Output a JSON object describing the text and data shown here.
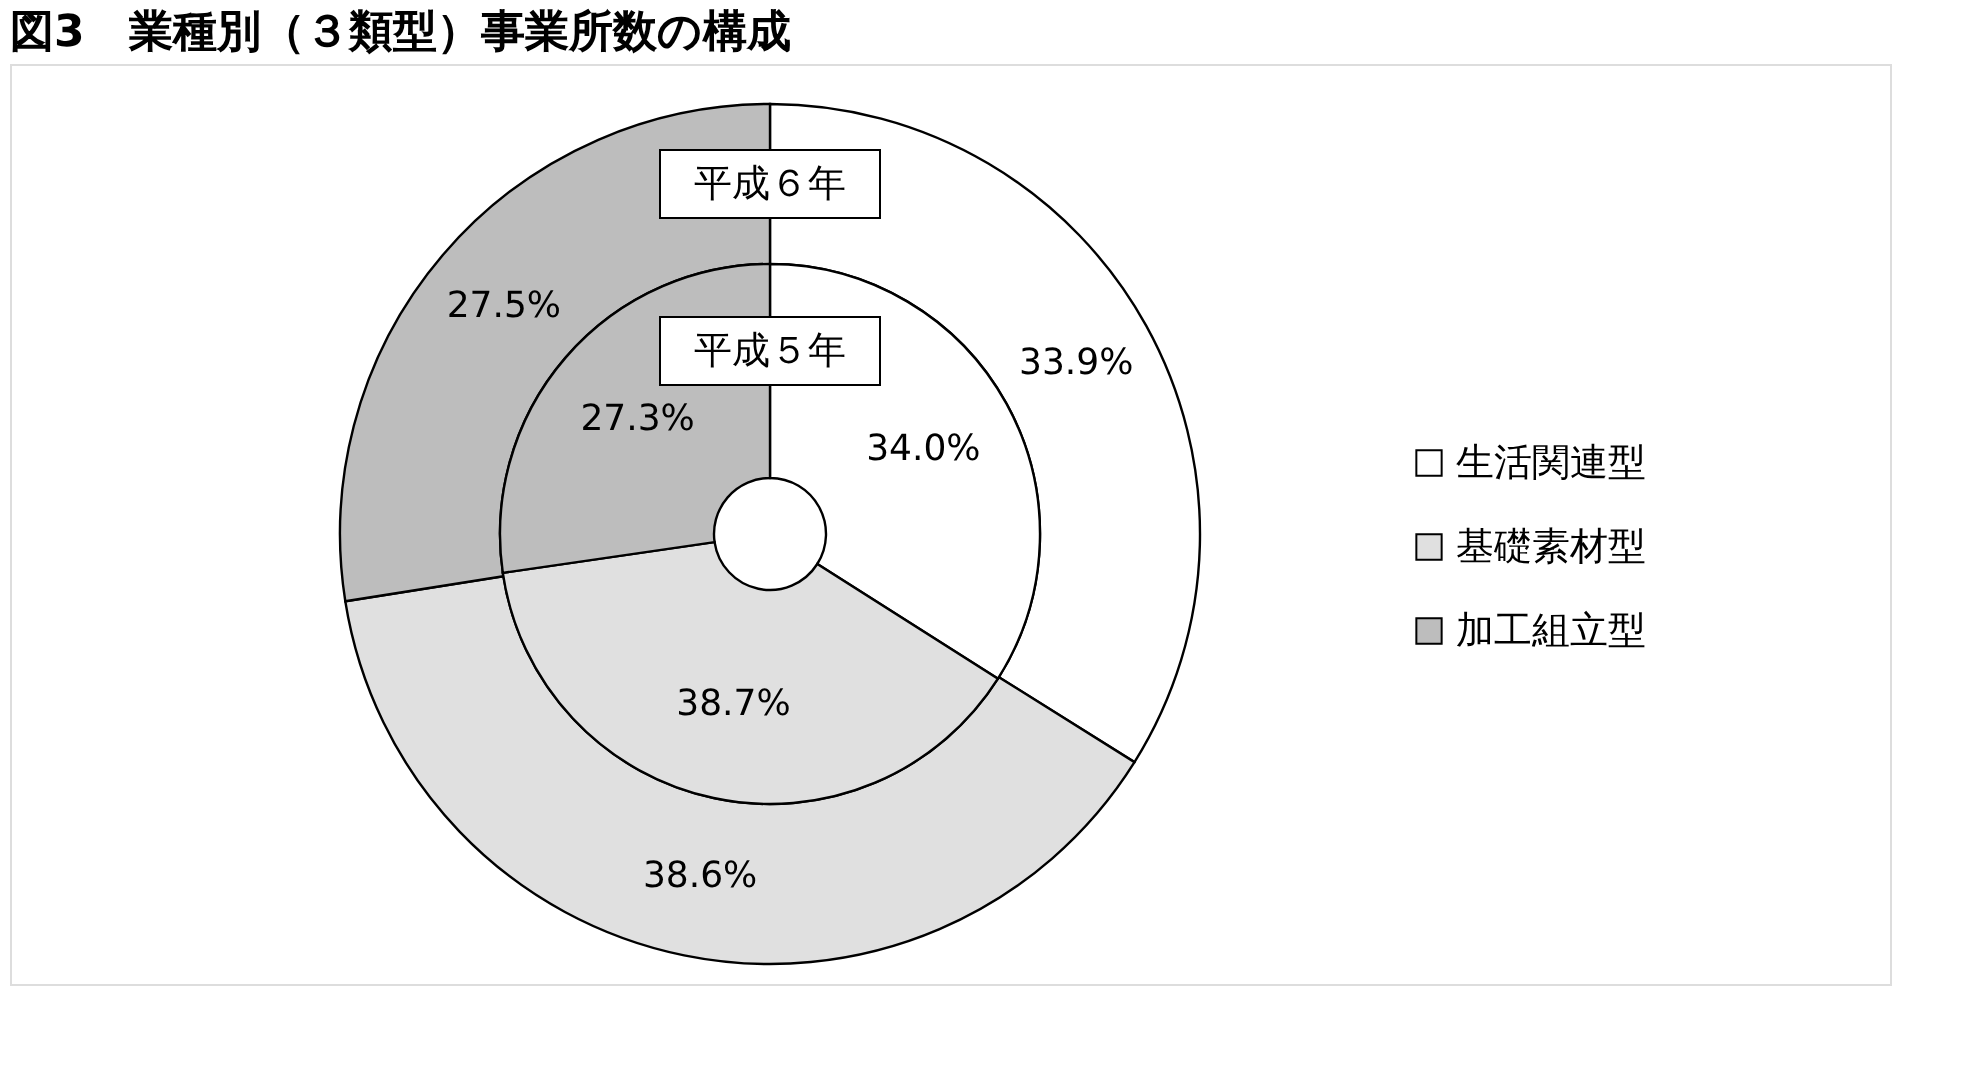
{
  "chart_data": {
    "type": "donut",
    "title": "図3　業種別（３類型）事業所数の構成",
    "categories": [
      "生活関連型",
      "基礎素材型",
      "加工組立型"
    ],
    "colors": [
      "#ffffff",
      "#e0e0e0",
      "#bdbdbd"
    ],
    "series": [
      {
        "name": "平成６年",
        "values": [
          33.9,
          38.6,
          27.5
        ],
        "value_labels": [
          "33.9%",
          "38.6%",
          "27.5%"
        ]
      },
      {
        "name": "平成５年",
        "values": [
          34.0,
          38.7,
          27.3
        ],
        "value_labels": [
          "34.0%",
          "38.7%",
          "27.3%"
        ]
      }
    ],
    "legend": "right"
  }
}
